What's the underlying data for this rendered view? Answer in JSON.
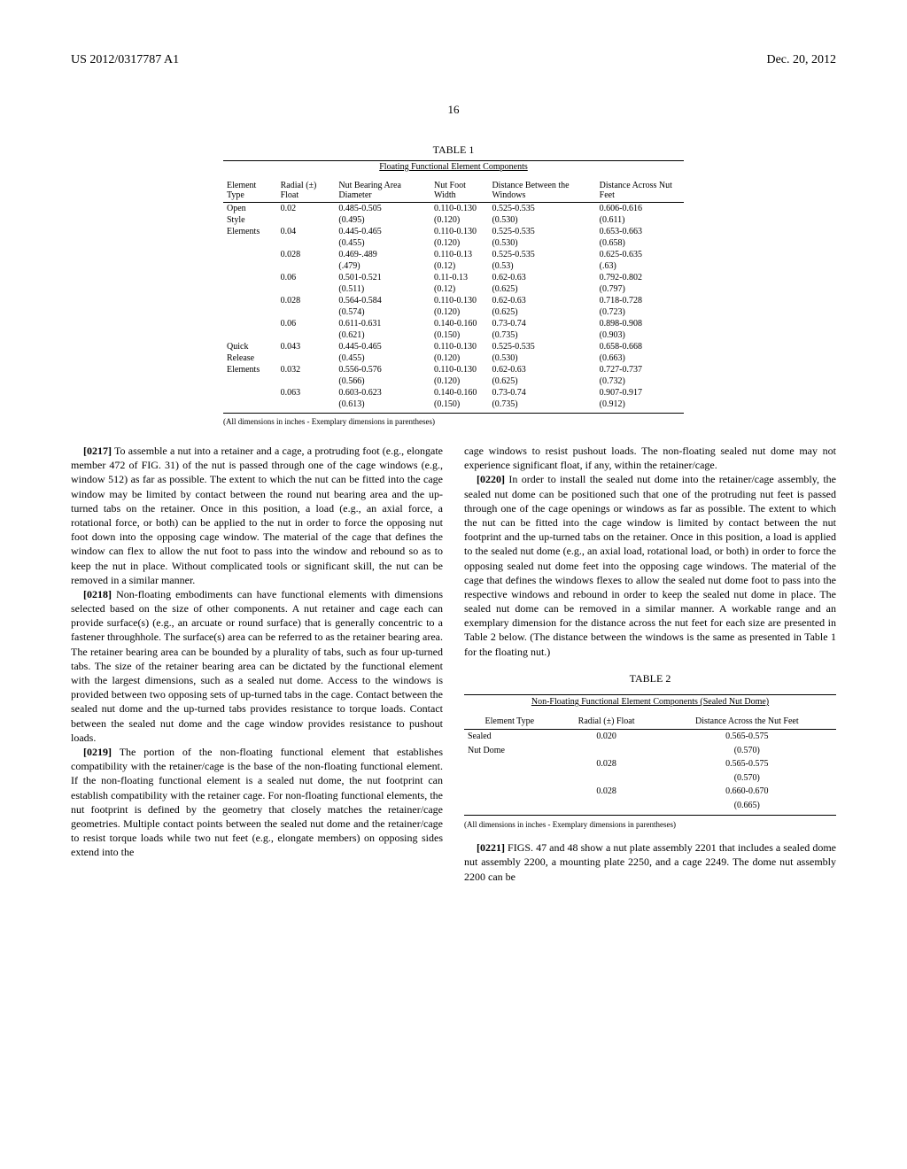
{
  "header": {
    "pub_number": "US 2012/0317787 A1",
    "date": "Dec. 20, 2012"
  },
  "page_number": "16",
  "table1": {
    "label": "TABLE 1",
    "caption": "Floating Functional Element Components",
    "columns": [
      "Element Type",
      "Radial (±) Float",
      "Nut Bearing Area Diameter",
      "Nut Foot Width",
      "Distance Between the Windows",
      "Distance Across Nut Feet"
    ],
    "rows": [
      [
        "Open",
        "0.02",
        "0.485-0.505",
        "0.110-0.130",
        "0.525-0.535",
        "0.606-0.616"
      ],
      [
        "Style",
        "",
        "(0.495)",
        "(0.120)",
        "(0.530)",
        "(0.611)"
      ],
      [
        "Elements",
        "0.04",
        "0.445-0.465",
        "0.110-0.130",
        "0.525-0.535",
        "0.653-0.663"
      ],
      [
        "",
        "",
        "(0.455)",
        "(0.120)",
        "(0.530)",
        "(0.658)"
      ],
      [
        "",
        "0.028",
        "0.469-.489",
        "0.110-0.13",
        "0.525-0.535",
        "0.625-0.635"
      ],
      [
        "",
        "",
        "(.479)",
        "(0.12)",
        "(0.53)",
        "(.63)"
      ],
      [
        "",
        "0.06",
        "0.501-0.521",
        "0.11-0.13",
        "0.62-0.63",
        "0.792-0.802"
      ],
      [
        "",
        "",
        "(0.511)",
        "(0.12)",
        "(0.625)",
        "(0.797)"
      ],
      [
        "",
        "0.028",
        "0.564-0.584",
        "0.110-0.130",
        "0.62-0.63",
        "0.718-0.728"
      ],
      [
        "",
        "",
        "(0.574)",
        "(0.120)",
        "(0.625)",
        "(0.723)"
      ],
      [
        "",
        "0.06",
        "0.611-0.631",
        "0.140-0.160",
        "0.73-0.74",
        "0.898-0.908"
      ],
      [
        "",
        "",
        "(0.621)",
        "(0.150)",
        "(0.735)",
        "(0.903)"
      ],
      [
        "Quick",
        "0.043",
        "0.445-0.465",
        "0.110-0.130",
        "0.525-0.535",
        "0.658-0.668"
      ],
      [
        "Release",
        "",
        "(0.455)",
        "(0.120)",
        "(0.530)",
        "(0.663)"
      ],
      [
        "Elements",
        "0.032",
        "0.556-0.576",
        "0.110-0.130",
        "0.62-0.63",
        "0.727-0.737"
      ],
      [
        "",
        "",
        "(0.566)",
        "(0.120)",
        "(0.625)",
        "(0.732)"
      ],
      [
        "",
        "0.063",
        "0.603-0.623",
        "0.140-0.160",
        "0.73-0.74",
        "0.907-0.917"
      ],
      [
        "",
        "",
        "(0.613)",
        "(0.150)",
        "(0.735)",
        "(0.912)"
      ]
    ],
    "note": "(All dimensions in inches - Exemplary dimensions in parentheses)"
  },
  "paragraphs": {
    "p0217_num": "[0217]",
    "p0217": "   To assemble a nut into a retainer and a cage, a protruding foot (e.g., elongate member 472 of FIG. 31) of the nut is passed through one of the cage windows (e.g., window 512) as far as possible. The extent to which the nut can be fitted into the cage window may be limited by contact between the round nut bearing area and the up-turned tabs on the retainer. Once in this position, a load (e.g., an axial force, a rotational force, or both) can be applied to the nut in order to force the opposing nut foot down into the opposing cage window. The material of the cage that defines the window can flex to allow the nut foot to pass into the window and rebound so as to keep the nut in place. Without complicated tools or significant skill, the nut can be removed in a similar manner.",
    "p0218_num": "[0218]",
    "p0218": "   Non-floating embodiments can have functional elements with dimensions selected based on the size of other components. A nut retainer and cage each can provide surface(s) (e.g., an arcuate or round surface) that is generally concentric to a fastener throughhole. The surface(s) area can be referred to as the retainer bearing area. The retainer bearing area can be bounded by a plurality of tabs, such as four up-turned tabs. The size of the retainer bearing area can be dictated by the functional element with the largest dimensions, such as a sealed nut dome. Access to the windows is provided between two opposing sets of up-turned tabs in the cage. Contact between the sealed nut dome and the up-turned tabs provides resistance to torque loads. Contact between the sealed nut dome and the cage window provides resistance to pushout loads.",
    "p0219_num": "[0219]",
    "p0219": "   The portion of the non-floating functional element that establishes compatibility with the retainer/cage is the base of the non-floating functional element. If the non-floating functional element is a sealed nut dome, the nut footprint can establish compatibility with the retainer cage. For non-floating functional elements, the nut footprint is defined by the geometry that closely matches the retainer/cage geometries. Multiple contact points between the sealed nut dome and the retainer/cage to resist torque loads while two nut feet (e.g., elongate members) on opposing sides extend into the",
    "p0219_cont": "cage windows to resist pushout loads. The non-floating sealed nut dome may not experience significant float, if any, within the retainer/cage.",
    "p0220_num": "[0220]",
    "p0220": "   In order to install the sealed nut dome into the retainer/cage assembly, the sealed nut dome can be positioned such that one of the protruding nut feet is passed through one of the cage openings or windows as far as possible. The extent to which the nut can be fitted into the cage window is limited by contact between the nut footprint and the up-turned tabs on the retainer. Once in this position, a load is applied to the sealed nut dome (e.g., an axial load, rotational load, or both) in order to force the opposing sealed nut dome feet into the opposing cage windows. The material of the cage that defines the windows flexes to allow the sealed nut dome foot to pass into the respective windows and rebound in order to keep the sealed nut dome in place. The sealed nut dome can be removed in a similar manner. A workable range and an exemplary dimension for the distance across the nut feet for each size are presented in Table 2 below. (The distance between the windows is the same as presented in Table 1 for the floating nut.)",
    "p0221_num": "[0221]",
    "p0221": "   FIGS. 47 and 48 show a nut plate assembly 2201 that includes a sealed dome nut assembly 2200, a mounting plate 2250, and a cage 2249. The dome nut assembly 2200 can be"
  },
  "table2": {
    "label": "TABLE 2",
    "caption": "Non-Floating Functional Element Components (Sealed Nut Dome)",
    "columns": [
      "Element Type",
      "Radial (±) Float",
      "Distance Across the Nut Feet"
    ],
    "rows": [
      [
        "Sealed",
        "0.020",
        "0.565-0.575"
      ],
      [
        "Nut Dome",
        "",
        "(0.570)"
      ],
      [
        "",
        "0.028",
        "0.565-0.575"
      ],
      [
        "",
        "",
        "(0.570)"
      ],
      [
        "",
        "0.028",
        "0.660-0.670"
      ],
      [
        "",
        "",
        "(0.665)"
      ]
    ],
    "note": "(All dimensions in inches - Exemplary dimensions in parentheses)"
  }
}
